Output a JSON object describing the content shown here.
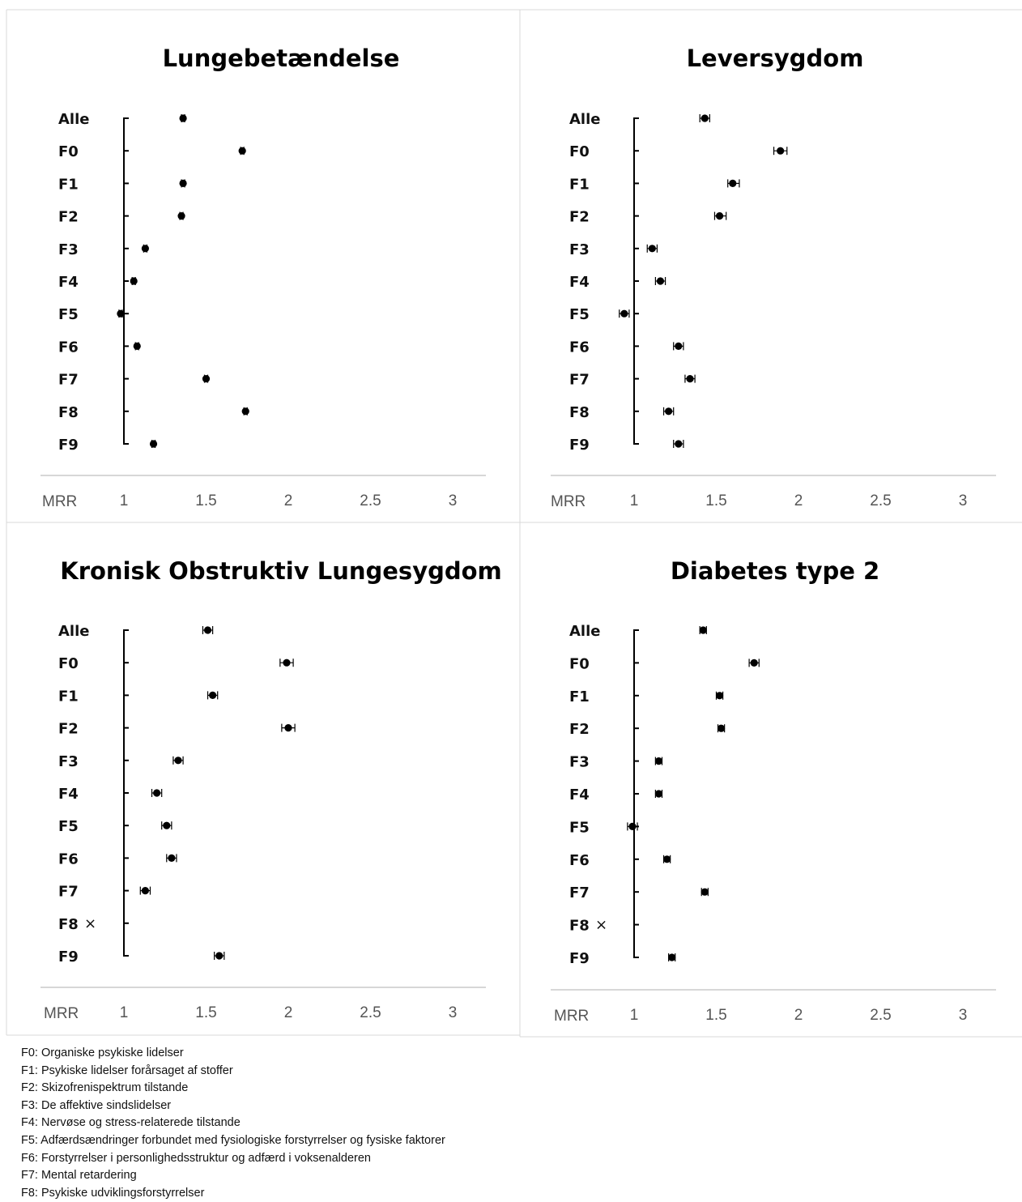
{
  "colors": {
    "marker": "#000000",
    "border": "#d9d9d9",
    "axis_text": "#555555"
  },
  "chart_data": [
    {
      "type": "scatter",
      "title": "Lungebetændelse",
      "xlabel": "MRR",
      "categories": [
        "Alle",
        "F0",
        "F1",
        "F2",
        "F3",
        "F4",
        "F5",
        "F6",
        "F7",
        "F8",
        "F9"
      ],
      "xlim": [
        1,
        3
      ],
      "xticks": [
        "1",
        "1.5",
        "2",
        "2.5",
        "3"
      ],
      "values": [
        1.36,
        1.72,
        1.36,
        1.35,
        1.13,
        1.06,
        0.98,
        1.08,
        1.5,
        1.74,
        1.18
      ],
      "ci_low": [
        1.35,
        1.71,
        1.35,
        1.34,
        1.12,
        1.05,
        0.97,
        1.07,
        1.49,
        1.73,
        1.17
      ],
      "ci_high": [
        1.37,
        1.73,
        1.37,
        1.36,
        1.14,
        1.07,
        0.99,
        1.09,
        1.51,
        1.75,
        1.19
      ],
      "not_available": [],
      "not_available_mark": "×"
    },
    {
      "type": "scatter",
      "title": "Leversygdom",
      "xlabel": "MRR",
      "categories": [
        "Alle",
        "F0",
        "F1",
        "F2",
        "F3",
        "F4",
        "F5",
        "F6",
        "F7",
        "F8",
        "F9"
      ],
      "xlim": [
        1,
        3
      ],
      "xticks": [
        "1",
        "1.5",
        "2",
        "2.5",
        "3"
      ],
      "values": [
        1.43,
        1.89,
        1.6,
        1.52,
        1.11,
        1.16,
        0.94,
        1.27,
        1.34,
        1.21,
        1.27
      ],
      "ci_low": [
        1.4,
        1.85,
        1.57,
        1.49,
        1.08,
        1.13,
        0.91,
        1.24,
        1.31,
        1.18,
        1.24
      ],
      "ci_high": [
        1.46,
        1.93,
        1.64,
        1.56,
        1.14,
        1.19,
        0.97,
        1.3,
        1.37,
        1.24,
        1.3
      ],
      "not_available": [],
      "not_available_mark": "×"
    },
    {
      "type": "scatter",
      "title": "Kronisk Obstruktiv Lungesygdom",
      "xlabel": "MRR",
      "categories": [
        "Alle",
        "F0",
        "F1",
        "F2",
        "F3",
        "F4",
        "F5",
        "F6",
        "F7",
        "F8",
        "F9"
      ],
      "xlim": [
        1,
        3
      ],
      "xticks": [
        "1",
        "1.5",
        "2",
        "2.5",
        "3"
      ],
      "values": [
        1.51,
        1.99,
        1.54,
        2.0,
        1.33,
        1.2,
        1.26,
        1.29,
        1.13,
        null,
        1.58
      ],
      "ci_low": [
        1.48,
        1.95,
        1.51,
        1.96,
        1.3,
        1.17,
        1.23,
        1.26,
        1.1,
        null,
        1.55
      ],
      "ci_high": [
        1.54,
        2.03,
        1.57,
        2.04,
        1.36,
        1.23,
        1.29,
        1.32,
        1.16,
        null,
        1.61
      ],
      "not_available": [
        "F8"
      ],
      "not_available_mark": "×"
    },
    {
      "type": "scatter",
      "title": "Diabetes type 2",
      "xlabel": "MRR",
      "categories": [
        "Alle",
        "F0",
        "F1",
        "F2",
        "F3",
        "F4",
        "F5",
        "F6",
        "F7",
        "F8",
        "F9"
      ],
      "xlim": [
        1,
        3
      ],
      "xticks": [
        "1",
        "1.5",
        "2",
        "2.5",
        "3"
      ],
      "values": [
        1.42,
        1.73,
        1.52,
        1.53,
        1.15,
        1.15,
        0.99,
        1.2,
        1.43,
        null,
        1.23
      ],
      "ci_low": [
        1.4,
        1.7,
        1.5,
        1.51,
        1.13,
        1.13,
        0.96,
        1.18,
        1.41,
        null,
        1.21
      ],
      "ci_high": [
        1.44,
        1.76,
        1.54,
        1.55,
        1.17,
        1.17,
        1.02,
        1.22,
        1.45,
        null,
        1.25
      ],
      "not_available": [
        "F8"
      ],
      "not_available_mark": "×"
    }
  ],
  "legend": [
    "F0: Organiske psykiske lidelser",
    "F1: Psykiske lidelser forårsaget af stoffer",
    "F2: Skizofrenispektrum tilstande",
    "F3: De affektive sindslidelser",
    "F4: Nervøse og stress-relaterede tilstande",
    "F5: Adfærdsændringer forbundet med fysiologiske forstyrrelser og fysiske faktorer",
    "F6: Forstyrrelser i personlighedsstruktur og adfærd i voksenalderen",
    "F7: Mental retardering",
    "F8: Psykiske udviklingsforstyrrelser"
  ]
}
